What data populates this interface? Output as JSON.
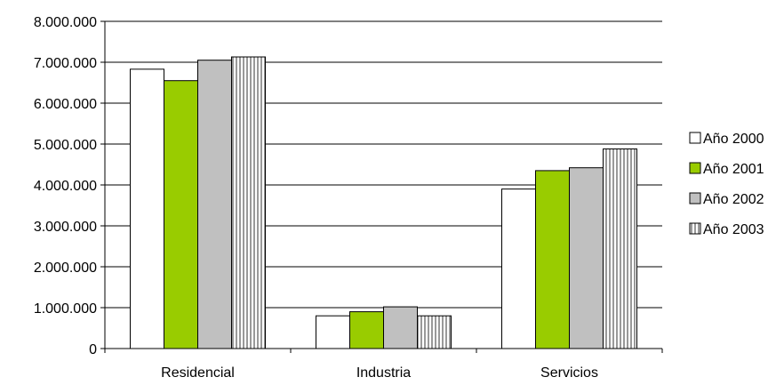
{
  "chart_data": {
    "type": "bar",
    "title": "",
    "xlabel": "",
    "ylabel": "",
    "categories": [
      "Residencial",
      "Industria",
      "Servicios"
    ],
    "series": [
      {
        "name": "Año 2000",
        "values": [
          6830000,
          800000,
          3900000
        ],
        "fill": "#ffffff",
        "pattern": "none"
      },
      {
        "name": "Año 2001",
        "values": [
          6550000,
          900000,
          4350000
        ],
        "fill": "#99cc00",
        "pattern": "none"
      },
      {
        "name": "Año 2002",
        "values": [
          7050000,
          1020000,
          4420000
        ],
        "fill": "#c0c0c0",
        "pattern": "none"
      },
      {
        "name": "Año 2003",
        "values": [
          7130000,
          800000,
          4880000
        ],
        "fill": "#ffffff",
        "pattern": "vertical-lines"
      }
    ],
    "ylim": [
      0,
      8000000
    ],
    "yticks": [
      0,
      1000000,
      2000000,
      3000000,
      4000000,
      5000000,
      6000000,
      7000000,
      8000000
    ],
    "ytick_labels": [
      "0",
      "1.000.000",
      "2.000.000",
      "3.000.000",
      "4.000.000",
      "5.000.000",
      "6.000.000",
      "7.000.000",
      "8.000.000"
    ],
    "grid": true,
    "legend_position": "right"
  }
}
